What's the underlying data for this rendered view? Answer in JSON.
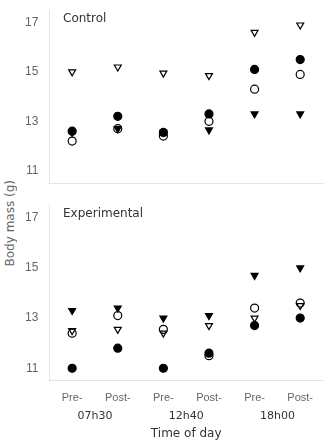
{
  "chart_data": [
    {
      "type": "scatter",
      "title": "Control",
      "ylabel": "Body mass (g)",
      "categories": [
        null,
        null,
        null,
        null,
        null,
        null
      ],
      "series": [
        {
          "marker": "open_circle",
          "color": "#000000",
          "values": [
            12.2,
            12.7,
            12.4,
            13.0,
            14.3,
            14.9
          ]
        },
        {
          "marker": "filled_circle",
          "color": "#000000",
          "values": [
            12.6,
            13.2,
            12.55,
            13.3,
            15.1,
            15.5
          ]
        },
        {
          "marker": "open_triangle_down",
          "color": "#000000",
          "values": [
            15.0,
            15.2,
            14.95,
            14.85,
            16.6,
            16.9
          ]
        },
        {
          "marker": "filled_triangle_down",
          "color": "#000000",
          "values": [
            12.55,
            12.7,
            12.55,
            12.65,
            13.3,
            13.3
          ]
        }
      ],
      "ylim": [
        10.5,
        17.5
      ],
      "yticks": [
        11,
        13,
        15,
        17
      ],
      "grid": false,
      "tick_labels": "y"
    },
    {
      "type": "scatter",
      "title": "Experimental",
      "xlabel": "Time of day",
      "categories": [
        "Pre-",
        "Post-",
        "Pre-",
        "Post-",
        "Pre-",
        "Post-"
      ],
      "group_labels": [
        "07h30",
        "12h40",
        "18h00"
      ],
      "series": [
        {
          "marker": "open_circle",
          "color": "#000000",
          "values": [
            12.4,
            13.1,
            12.55,
            11.5,
            13.4,
            13.6
          ]
        },
        {
          "marker": "filled_circle",
          "color": "#000000",
          "values": [
            11.0,
            11.8,
            11.0,
            11.6,
            12.7,
            13.0
          ]
        },
        {
          "marker": "open_triangle_down",
          "color": "#000000",
          "values": [
            12.5,
            12.55,
            12.4,
            12.7,
            13.0,
            13.5
          ]
        },
        {
          "marker": "filled_triangle_down",
          "color": "#000000",
          "values": [
            13.3,
            13.4,
            13.0,
            13.1,
            14.7,
            15.0
          ]
        }
      ],
      "ylim": [
        10.5,
        17.5
      ],
      "yticks": [
        11,
        13,
        15,
        17
      ],
      "grid": false
    }
  ]
}
